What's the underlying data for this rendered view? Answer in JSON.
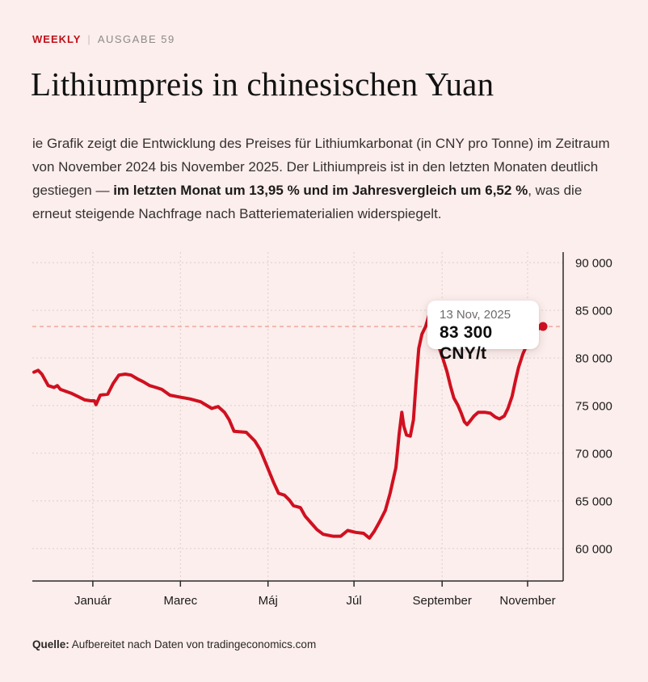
{
  "page": {
    "background": "#fbeeec",
    "accent_red": "#bf1019"
  },
  "header": {
    "brand": "WEEKLY",
    "separator": "|",
    "issue": "AUSGABE 59"
  },
  "title": "Lithiumpreis in chinesischen Yuan",
  "intro": {
    "lead": "ie Grafik zeigt die Entwicklung des Preises für Lithiumkarbonat (in CNY pro Tonne) im Zeitraum von November 2024 bis November 2025. Der Lithiumpreis ist in den letzten Monaten deutlich gestiegen — ",
    "bold": "im letzten Monat um 13,95 % und im Jahresvergleich um 6,52 %",
    "tail": ", was die erneut steigende Nachfrage nach Batteriematerialien widerspiegelt."
  },
  "tooltip": {
    "date": "13 Nov, 2025",
    "value": "83 300 CNY/t"
  },
  "source": {
    "label": "Quelle:",
    "text": " Aufbereitet nach Daten von tradingeconomics.com"
  },
  "chart_data": {
    "type": "line",
    "title": "Lithiumpreis in chinesischen Yuan",
    "unit": "CNY pro Tonne",
    "timespan": "November 2024 – November 2025",
    "line_color": "#d01020",
    "grid_color": "#dccfcd",
    "crosshair_color": "#f0a09a",
    "axis_color": "#2b2b2b",
    "label_color": "#1c1a1a",
    "ylim": [
      56600,
      91100
    ],
    "grid": true,
    "legend_position": "none",
    "y_axis_side": "right",
    "y_ticks": [
      {
        "v": 90000,
        "label": "90 000"
      },
      {
        "v": 85000,
        "label": "85 000"
      },
      {
        "v": 80000,
        "label": "80 000"
      },
      {
        "v": 75000,
        "label": "75 000"
      },
      {
        "v": 70000,
        "label": "70 000"
      },
      {
        "v": 65000,
        "label": "65 000"
      },
      {
        "v": 60000,
        "label": "60 000"
      }
    ],
    "x_ticks": [
      {
        "t": 0.114,
        "label": "Január"
      },
      {
        "t": 0.279,
        "label": "Marec"
      },
      {
        "t": 0.444,
        "label": "Máj"
      },
      {
        "t": 0.606,
        "label": "Júl"
      },
      {
        "t": 0.772,
        "label": "September"
      },
      {
        "t": 0.933,
        "label": "November"
      }
    ],
    "last_point": {
      "t": 0.962,
      "v": 83300,
      "date": "13 Nov, 2025",
      "label": "83 300 CNY/t"
    },
    "series": [
      {
        "name": "Lithiumkarbonat (CNY/t)",
        "points": [
          [
            0.003,
            78500
          ],
          [
            0.011,
            78700
          ],
          [
            0.018,
            78300
          ],
          [
            0.03,
            77100
          ],
          [
            0.041,
            76900
          ],
          [
            0.047,
            77100
          ],
          [
            0.053,
            76700
          ],
          [
            0.073,
            76300
          ],
          [
            0.088,
            75900
          ],
          [
            0.099,
            75600
          ],
          [
            0.11,
            75500
          ],
          [
            0.117,
            75500
          ],
          [
            0.12,
            75100
          ],
          [
            0.128,
            76100
          ],
          [
            0.142,
            76200
          ],
          [
            0.152,
            77300
          ],
          [
            0.163,
            78200
          ],
          [
            0.175,
            78300
          ],
          [
            0.186,
            78200
          ],
          [
            0.198,
            77800
          ],
          [
            0.209,
            77500
          ],
          [
            0.221,
            77100
          ],
          [
            0.233,
            76900
          ],
          [
            0.244,
            76700
          ],
          [
            0.259,
            76100
          ],
          [
            0.277,
            75900
          ],
          [
            0.297,
            75700
          ],
          [
            0.317,
            75400
          ],
          [
            0.338,
            74700
          ],
          [
            0.35,
            74900
          ],
          [
            0.362,
            74300
          ],
          [
            0.371,
            73500
          ],
          [
            0.38,
            72300
          ],
          [
            0.403,
            72200
          ],
          [
            0.419,
            71300
          ],
          [
            0.429,
            70400
          ],
          [
            0.441,
            68800
          ],
          [
            0.454,
            67000
          ],
          [
            0.464,
            65800
          ],
          [
            0.475,
            65600
          ],
          [
            0.484,
            65100
          ],
          [
            0.492,
            64500
          ],
          [
            0.505,
            64300
          ],
          [
            0.514,
            63400
          ],
          [
            0.525,
            62700
          ],
          [
            0.536,
            62000
          ],
          [
            0.548,
            61500
          ],
          [
            0.566,
            61300
          ],
          [
            0.581,
            61300
          ],
          [
            0.594,
            61900
          ],
          [
            0.609,
            61700
          ],
          [
            0.624,
            61600
          ],
          [
            0.635,
            61100
          ],
          [
            0.644,
            61800
          ],
          [
            0.654,
            62800
          ],
          [
            0.665,
            64000
          ],
          [
            0.674,
            65800
          ],
          [
            0.685,
            68500
          ],
          [
            0.691,
            72000
          ],
          [
            0.696,
            74300
          ],
          [
            0.7,
            72800
          ],
          [
            0.705,
            71900
          ],
          [
            0.712,
            71800
          ],
          [
            0.718,
            73500
          ],
          [
            0.723,
            77500
          ],
          [
            0.728,
            81000
          ],
          [
            0.734,
            82500
          ],
          [
            0.741,
            83300
          ],
          [
            0.749,
            84800
          ],
          [
            0.755,
            85600
          ],
          [
            0.761,
            83500
          ],
          [
            0.767,
            81000
          ],
          [
            0.773,
            80000
          ],
          [
            0.781,
            78600
          ],
          [
            0.788,
            77000
          ],
          [
            0.794,
            75800
          ],
          [
            0.802,
            75000
          ],
          [
            0.808,
            74200
          ],
          [
            0.814,
            73300
          ],
          [
            0.819,
            73000
          ],
          [
            0.825,
            73400
          ],
          [
            0.832,
            73900
          ],
          [
            0.84,
            74300
          ],
          [
            0.852,
            74300
          ],
          [
            0.863,
            74200
          ],
          [
            0.872,
            73800
          ],
          [
            0.88,
            73600
          ],
          [
            0.889,
            73900
          ],
          [
            0.896,
            74700
          ],
          [
            0.904,
            76000
          ],
          [
            0.91,
            77600
          ],
          [
            0.916,
            79000
          ],
          [
            0.924,
            80400
          ],
          [
            0.931,
            81300
          ],
          [
            0.941,
            82200
          ],
          [
            0.948,
            82700
          ],
          [
            0.954,
            83100
          ],
          [
            0.959,
            83400
          ],
          [
            0.962,
            83300
          ]
        ]
      }
    ]
  }
}
